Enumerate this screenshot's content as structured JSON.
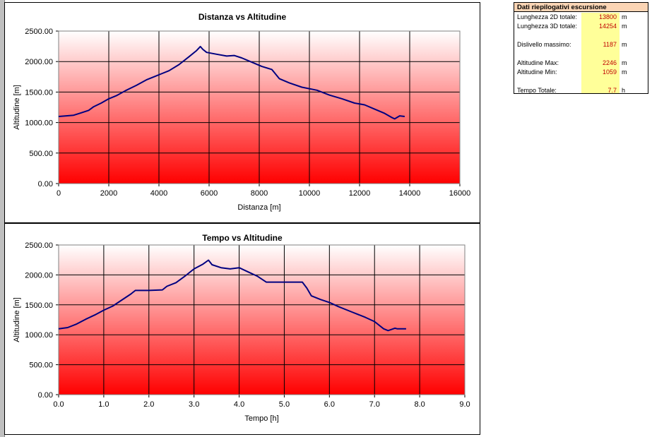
{
  "summary": {
    "title": "Dati riepilogativi escursione",
    "rows": [
      {
        "label": "Lunghezza 2D totale:",
        "value": "13800",
        "unit": "m"
      },
      {
        "label": "Lunghezza 3D totale:",
        "value": "14254",
        "unit": "m"
      },
      {
        "label": "Dislivello massimo:",
        "value": "1187",
        "unit": "m"
      },
      {
        "label": "Altitudine Max:",
        "value": "2246",
        "unit": "m"
      },
      {
        "label": "Altitudine Min:",
        "value": "1059",
        "unit": "m"
      },
      {
        "label": "Tempo Totale:",
        "value": "7.7",
        "unit": "h"
      }
    ]
  },
  "colors": {
    "line": "#000080",
    "gradient_top": "#ffffff",
    "gradient_bottom": "#ff0000",
    "summary_header": "#fbd5b5",
    "summary_values_bg": "#ffff99",
    "summary_value_text": "#c00000"
  },
  "chart_data": [
    {
      "type": "line",
      "title": "Distanza vs Altitudine",
      "xlabel": "Distanza [m]",
      "ylabel": "Altitudine [m]",
      "xlim": [
        0,
        16000
      ],
      "ylim": [
        0,
        2500
      ],
      "xticks": [
        0,
        2000,
        4000,
        6000,
        8000,
        10000,
        12000,
        14000,
        16000
      ],
      "xtick_labels": [
        "0",
        "2000",
        "4000",
        "6000",
        "8000",
        "10000",
        "12000",
        "14000",
        "16000"
      ],
      "yticks": [
        0,
        500,
        1000,
        1500,
        2000,
        2500
      ],
      "ytick_labels": [
        "0.00",
        "500.00",
        "1000.00",
        "1500.00",
        "2000.00",
        "2500.00"
      ],
      "grid": true,
      "legend": "none",
      "series": [
        {
          "x": [
            0,
            300,
            600,
            900,
            1200,
            1400,
            1700,
            2000,
            2300,
            2700,
            3100,
            3500,
            3800,
            4100,
            4400,
            4800,
            5200,
            5500,
            5650,
            5750,
            5900,
            6300,
            6700,
            7000,
            7300,
            7700,
            8100,
            8500,
            8800,
            9200,
            9700,
            10300,
            10800,
            11300,
            11800,
            12200,
            12600,
            13000,
            13300,
            13400,
            13600,
            13800
          ],
          "y": [
            1100,
            1110,
            1120,
            1160,
            1200,
            1260,
            1320,
            1390,
            1440,
            1530,
            1610,
            1700,
            1750,
            1800,
            1850,
            1950,
            2080,
            2180,
            2246,
            2200,
            2150,
            2120,
            2090,
            2100,
            2060,
            1990,
            1920,
            1870,
            1720,
            1650,
            1580,
            1530,
            1450,
            1390,
            1320,
            1290,
            1220,
            1150,
            1080,
            1060,
            1110,
            1100
          ]
        }
      ]
    },
    {
      "type": "line",
      "title": "Tempo vs Altitudine",
      "xlabel": "Tempo [h]",
      "ylabel": "Altitudine [m]",
      "xlim": [
        0,
        9
      ],
      "ylim": [
        0,
        2500
      ],
      "xticks": [
        0,
        1,
        2,
        3,
        4,
        5,
        6,
        7,
        8,
        9
      ],
      "xtick_labels": [
        "0.0",
        "1.0",
        "2.0",
        "3.0",
        "4.0",
        "5.0",
        "6.0",
        "7.0",
        "8.0",
        "9.0"
      ],
      "yticks": [
        0,
        500,
        1000,
        1500,
        2000,
        2500
      ],
      "ytick_labels": [
        "0.00",
        "500.00",
        "1000.00",
        "1500.00",
        "2000.00",
        "2500.00"
      ],
      "grid": true,
      "legend": "none",
      "series": [
        {
          "x": [
            0,
            0.2,
            0.4,
            0.6,
            0.8,
            1.0,
            1.2,
            1.4,
            1.6,
            1.7,
            2.0,
            2.3,
            2.4,
            2.6,
            2.8,
            3.0,
            3.2,
            3.32,
            3.4,
            3.6,
            3.8,
            4.0,
            4.2,
            4.4,
            4.6,
            5.0,
            5.4,
            5.5,
            5.6,
            5.8,
            6.0,
            6.2,
            6.5,
            6.8,
            7.0,
            7.2,
            7.3,
            7.45,
            7.5,
            7.7
          ],
          "y": [
            1100,
            1120,
            1180,
            1260,
            1330,
            1410,
            1480,
            1580,
            1680,
            1740,
            1740,
            1750,
            1810,
            1870,
            1980,
            2100,
            2180,
            2246,
            2170,
            2120,
            2100,
            2120,
            2050,
            1980,
            1880,
            1880,
            1880,
            1780,
            1650,
            1590,
            1540,
            1470,
            1380,
            1290,
            1220,
            1100,
            1070,
            1110,
            1100,
            1100
          ]
        }
      ]
    }
  ]
}
